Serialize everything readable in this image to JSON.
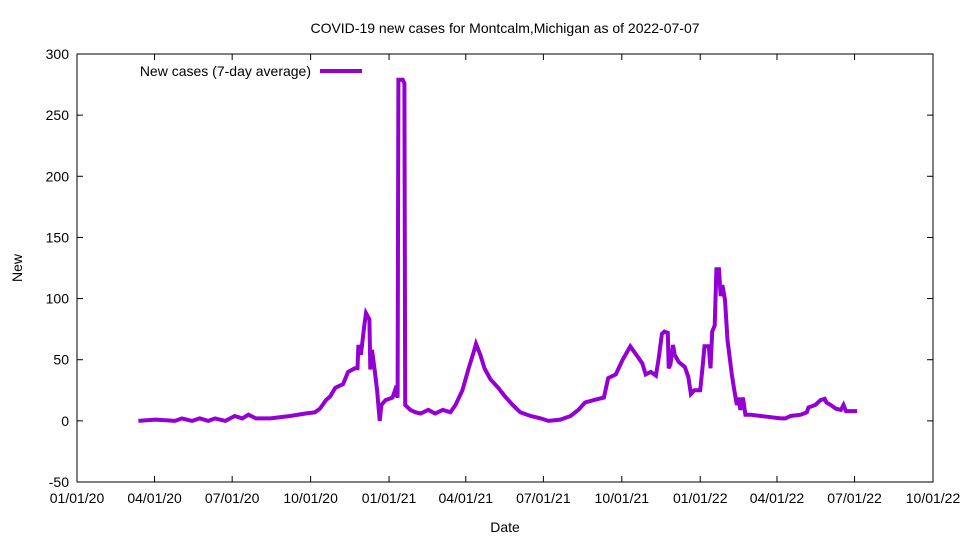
{
  "chart_data": {
    "type": "line",
    "title": "COVID-19 new cases for Montcalm,Michigan as of 2022-07-07",
    "xlabel": "Date",
    "ylabel": "New",
    "x_unit": "days since 2020-01-01",
    "xlim": [
      0,
      1004
    ],
    "ylim": [
      -50,
      300
    ],
    "grid": false,
    "legend_position": "top-left",
    "x_ticks": [
      {
        "value": 0,
        "label": "01/01/20"
      },
      {
        "value": 91,
        "label": "04/01/20"
      },
      {
        "value": 182,
        "label": "07/01/20"
      },
      {
        "value": 274,
        "label": "10/01/20"
      },
      {
        "value": 366,
        "label": "01/01/21"
      },
      {
        "value": 456,
        "label": "04/01/21"
      },
      {
        "value": 547,
        "label": "07/01/21"
      },
      {
        "value": 639,
        "label": "10/01/21"
      },
      {
        "value": 731,
        "label": "01/01/22"
      },
      {
        "value": 821,
        "label": "04/01/22"
      },
      {
        "value": 912,
        "label": "07/01/22"
      },
      {
        "value": 1004,
        "label": "10/01/22"
      }
    ],
    "y_ticks": [
      {
        "value": -50,
        "label": "-50"
      },
      {
        "value": 0,
        "label": "0"
      },
      {
        "value": 50,
        "label": "50"
      },
      {
        "value": 100,
        "label": "100"
      },
      {
        "value": 150,
        "label": "150"
      },
      {
        "value": 200,
        "label": "200"
      },
      {
        "value": 250,
        "label": "250"
      },
      {
        "value": 300,
        "label": "300"
      }
    ],
    "series": [
      {
        "name": "New cases (7-day average)",
        "color": "#9400d3",
        "x": [
          72,
          92,
          115,
          123,
          135,
          144,
          154,
          162,
          174,
          185,
          194,
          201,
          210,
          227,
          250,
          268,
          279,
          285,
          292,
          297,
          303,
          312,
          318,
          326,
          329,
          330,
          333,
          337,
          339,
          343,
          344,
          346,
          349,
          352,
          355,
          357,
          362,
          370,
          373,
          376,
          377,
          382,
          384,
          385,
          391,
          397,
          403,
          412,
          420,
          429,
          438,
          444,
          452,
          459,
          466,
          468,
          473,
          478,
          485,
          494,
          502,
          511,
          520,
          532,
          544,
          553,
          567,
          579,
          588,
          596,
          606,
          618,
          623,
          632,
          640,
          649,
          656,
          663,
          667,
          673,
          679,
          682,
          686,
          689,
          693,
          694,
          696,
          699,
          701,
          706,
          713,
          717,
          720,
          724,
          731,
          734,
          736,
          741,
          743,
          745,
          748,
          750,
          753,
          755,
          757,
          760,
          763,
          768,
          771,
          774,
          776,
          778,
          781,
          784,
          790,
          802,
          814,
          825,
          831,
          837,
          849,
          856,
          858,
          866,
          872,
          877,
          879,
          884,
          890,
          896,
          899,
          902,
          910,
          915
        ],
        "y": [
          0,
          1,
          0,
          2,
          0,
          2,
          0,
          2,
          0,
          4,
          2,
          5,
          2,
          2,
          4,
          6,
          7,
          10,
          17,
          20,
          27,
          30,
          40,
          43,
          43,
          62,
          54,
          78,
          88,
          83,
          42,
          58,
          42,
          25,
          0,
          13,
          17,
          19,
          25,
          19,
          279,
          279,
          276,
          13,
          9,
          7,
          6,
          9,
          6,
          9,
          7,
          13,
          25,
          42,
          58,
          63,
          54,
          43,
          34,
          27,
          20,
          13,
          7,
          4,
          2,
          0,
          1,
          4,
          9,
          15,
          17,
          19,
          35,
          38,
          50,
          61,
          54,
          47,
          38,
          40,
          37,
          50,
          71,
          73,
          72,
          43,
          46,
          62,
          54,
          48,
          44,
          36,
          22,
          25,
          25,
          46,
          61,
          61,
          43,
          73,
          78,
          124,
          124,
          102,
          111,
          99,
          66,
          38,
          25,
          13,
          19,
          9,
          19,
          5,
          5,
          4,
          3,
          2,
          2,
          4,
          5,
          7,
          11,
          13,
          17,
          18,
          15,
          13,
          10,
          9,
          13,
          8,
          8,
          8
        ]
      }
    ]
  }
}
